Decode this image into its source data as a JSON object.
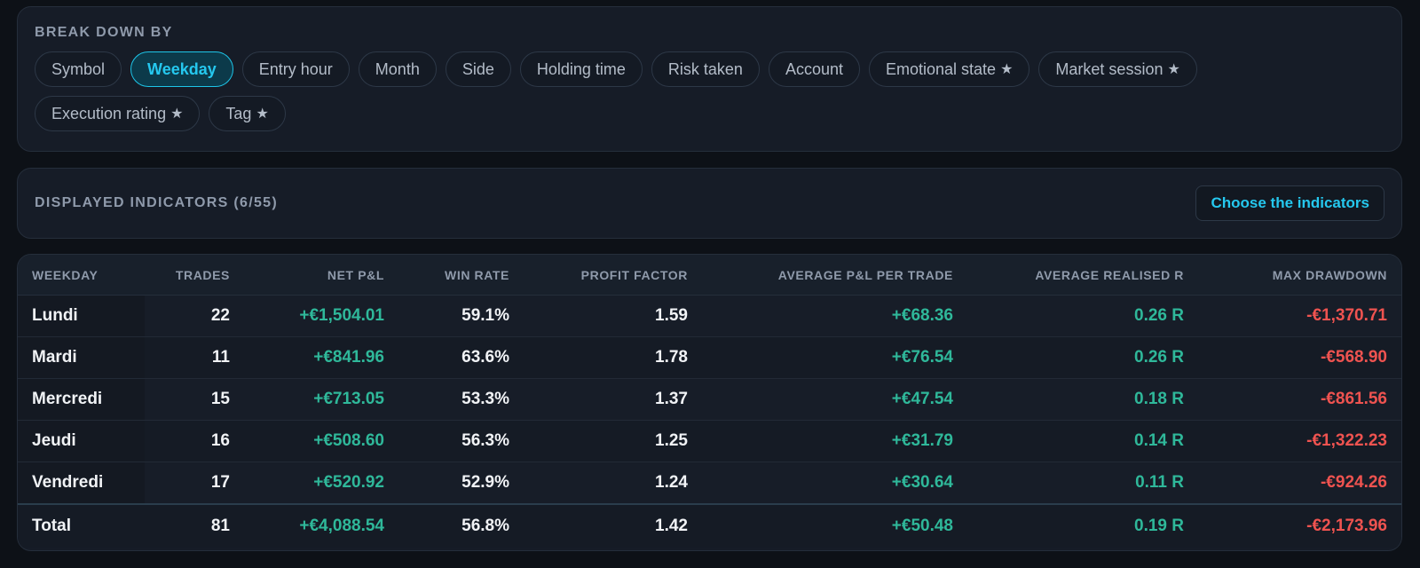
{
  "breakdown": {
    "label": "BREAK DOWN BY",
    "chips": [
      {
        "label": "Symbol",
        "star": false,
        "active": false
      },
      {
        "label": "Weekday",
        "star": false,
        "active": true
      },
      {
        "label": "Entry hour",
        "star": false,
        "active": false
      },
      {
        "label": "Month",
        "star": false,
        "active": false
      },
      {
        "label": "Side",
        "star": false,
        "active": false
      },
      {
        "label": "Holding time",
        "star": false,
        "active": false
      },
      {
        "label": "Risk taken",
        "star": false,
        "active": false
      },
      {
        "label": "Account",
        "star": false,
        "active": false
      },
      {
        "label": "Emotional state",
        "star": true,
        "active": false
      },
      {
        "label": "Market session",
        "star": true,
        "active": false
      },
      {
        "label": "Execution rating",
        "star": true,
        "active": false
      },
      {
        "label": "Tag",
        "star": true,
        "active": false
      }
    ],
    "star_glyph": "★"
  },
  "indicators": {
    "label": "DISPLAYED INDICATORS (6/55)",
    "choose_button": "Choose the indicators"
  },
  "table": {
    "columns": [
      "WEEKDAY",
      "TRADES",
      "NET P&L",
      "WIN RATE",
      "PROFIT FACTOR",
      "AVERAGE P&L PER TRADE",
      "AVERAGE REALISED R",
      "MAX DRAWDOWN"
    ],
    "rows": [
      [
        "Lundi",
        "22",
        "+€1,504.01",
        "59.1%",
        "1.59",
        "+€68.36",
        "0.26 R",
        "-€1,370.71"
      ],
      [
        "Mardi",
        "11",
        "+€841.96",
        "63.6%",
        "1.78",
        "+€76.54",
        "0.26 R",
        "-€568.90"
      ],
      [
        "Mercredi",
        "15",
        "+€713.05",
        "53.3%",
        "1.37",
        "+€47.54",
        "0.18 R",
        "-€861.56"
      ],
      [
        "Jeudi",
        "16",
        "+€508.60",
        "56.3%",
        "1.25",
        "+€31.79",
        "0.14 R",
        "-€1,322.23"
      ],
      [
        "Vendredi",
        "17",
        "+€520.92",
        "52.9%",
        "1.24",
        "+€30.64",
        "0.11 R",
        "-€924.26"
      ]
    ],
    "total": [
      "Total",
      "81",
      "+€4,088.54",
      "56.8%",
      "1.42",
      "+€50.48",
      "0.19 R",
      "-€2,173.96"
    ],
    "column_tones": [
      "neutral",
      "neutral",
      "pos",
      "neutral",
      "neutral",
      "pos",
      "pos",
      "neg"
    ]
  },
  "colors": {
    "accent": "#25c8ef",
    "positive": "#2fb89a",
    "negative": "#ef5350",
    "background": "#0d1117",
    "panel": "#161c27"
  }
}
